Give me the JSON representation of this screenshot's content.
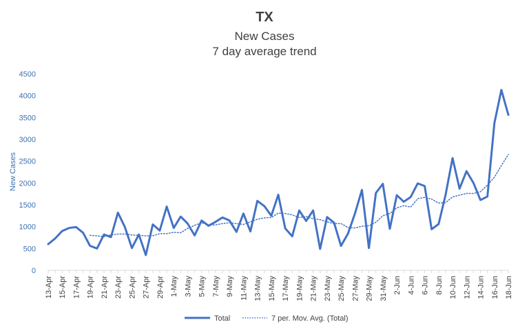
{
  "chart_data": {
    "type": "line",
    "title": "TX",
    "subtitle": [
      "New Cases",
      "7 day average trend"
    ],
    "xlabel": "",
    "ylabel": "New Cases",
    "ylim": [
      0,
      4500
    ],
    "yticks": [
      0,
      500,
      1000,
      1500,
      2000,
      2500,
      3000,
      3500,
      4000,
      4500
    ],
    "x": [
      "13-Apr",
      "14-Apr",
      "15-Apr",
      "16-Apr",
      "17-Apr",
      "18-Apr",
      "19-Apr",
      "20-Apr",
      "21-Apr",
      "22-Apr",
      "23-Apr",
      "24-Apr",
      "25-Apr",
      "26-Apr",
      "27-Apr",
      "28-Apr",
      "29-Apr",
      "30-Apr",
      "1-May",
      "2-May",
      "3-May",
      "4-May",
      "5-May",
      "6-May",
      "7-May",
      "8-May",
      "9-May",
      "10-May",
      "11-May",
      "12-May",
      "13-May",
      "14-May",
      "15-May",
      "16-May",
      "17-May",
      "18-May",
      "19-May",
      "20-May",
      "21-May",
      "22-May",
      "23-May",
      "24-May",
      "25-May",
      "26-May",
      "27-May",
      "28-May",
      "29-May",
      "30-May",
      "31-May",
      "1-Jun",
      "2-Jun",
      "3-Jun",
      "4-Jun",
      "5-Jun",
      "6-Jun",
      "7-Jun",
      "8-Jun",
      "9-Jun",
      "10-Jun",
      "11-Jun",
      "12-Jun",
      "13-Jun",
      "14-Jun",
      "15-Jun",
      "16-Jun",
      "17-Jun",
      "18-Jun"
    ],
    "x_tick_labels": [
      "13-Apr",
      "",
      "15-Apr",
      "",
      "17-Apr",
      "",
      "19-Apr",
      "",
      "21-Apr",
      "",
      "23-Apr",
      "",
      "25-Apr",
      "",
      "27-Apr",
      "",
      "29-Apr",
      "",
      "1-May",
      "",
      "3-May",
      "",
      "5-May",
      "",
      "7-May",
      "",
      "9-May",
      "",
      "11-May",
      "",
      "13-May",
      "",
      "15-May",
      "",
      "17-May",
      "",
      "19-May",
      "",
      "21-May",
      "",
      "23-May",
      "",
      "25-May",
      "",
      "27-May",
      "",
      "29-May",
      "",
      "31-May",
      "",
      "2-Jun",
      "",
      "4-Jun",
      "",
      "6-Jun",
      "",
      "8-Jun",
      "",
      "10-Jun",
      "",
      "12-Jun",
      "",
      "14-Jun",
      "",
      "16-Jun",
      "",
      "18-Jun"
    ],
    "series": [
      {
        "name": "Total",
        "style": "solid",
        "color": "#4472c4",
        "values": [
          600,
          730,
          900,
          970,
          990,
          860,
          560,
          500,
          820,
          760,
          1320,
          990,
          510,
          820,
          350,
          1050,
          910,
          1460,
          970,
          1230,
          1070,
          800,
          1140,
          1020,
          1110,
          1210,
          1140,
          880,
          1300,
          890,
          1590,
          1470,
          1250,
          1730,
          960,
          780,
          1370,
          1130,
          1370,
          490,
          1220,
          1090,
          560,
          840,
          1300,
          1840,
          510,
          1770,
          1980,
          950,
          1720,
          1570,
          1680,
          1990,
          1930,
          940,
          1060,
          1730,
          2570,
          1870,
          2270,
          2000,
          1610,
          1690,
          3370,
          4130,
          3560
        ]
      },
      {
        "name": "7 per. Mov. Avg. (Total)",
        "style": "dotted",
        "color": "#4472c4",
        "values": [
          null,
          null,
          null,
          null,
          null,
          null,
          800,
          790,
          770,
          810,
          830,
          830,
          810,
          800,
          790,
          790,
          840,
          840,
          870,
          860,
          960,
          1030,
          1090,
          1040,
          1040,
          1070,
          1090,
          1070,
          1050,
          1110,
          1170,
          1200,
          1210,
          1310,
          1300,
          1270,
          1210,
          1230,
          1180,
          1160,
          1110,
          1070,
          1070,
          980,
          970,
          1010,
          1020,
          1100,
          1250,
          1300,
          1430,
          1480,
          1450,
          1640,
          1670,
          1630,
          1540,
          1550,
          1680,
          1720,
          1760,
          1760,
          1800,
          1950,
          2130,
          2400,
          2650
        ]
      }
    ],
    "legend": {
      "placement": "bottom",
      "entries": [
        "Total",
        "7 per. Mov. Avg. (Total)"
      ]
    },
    "grid": false
  }
}
